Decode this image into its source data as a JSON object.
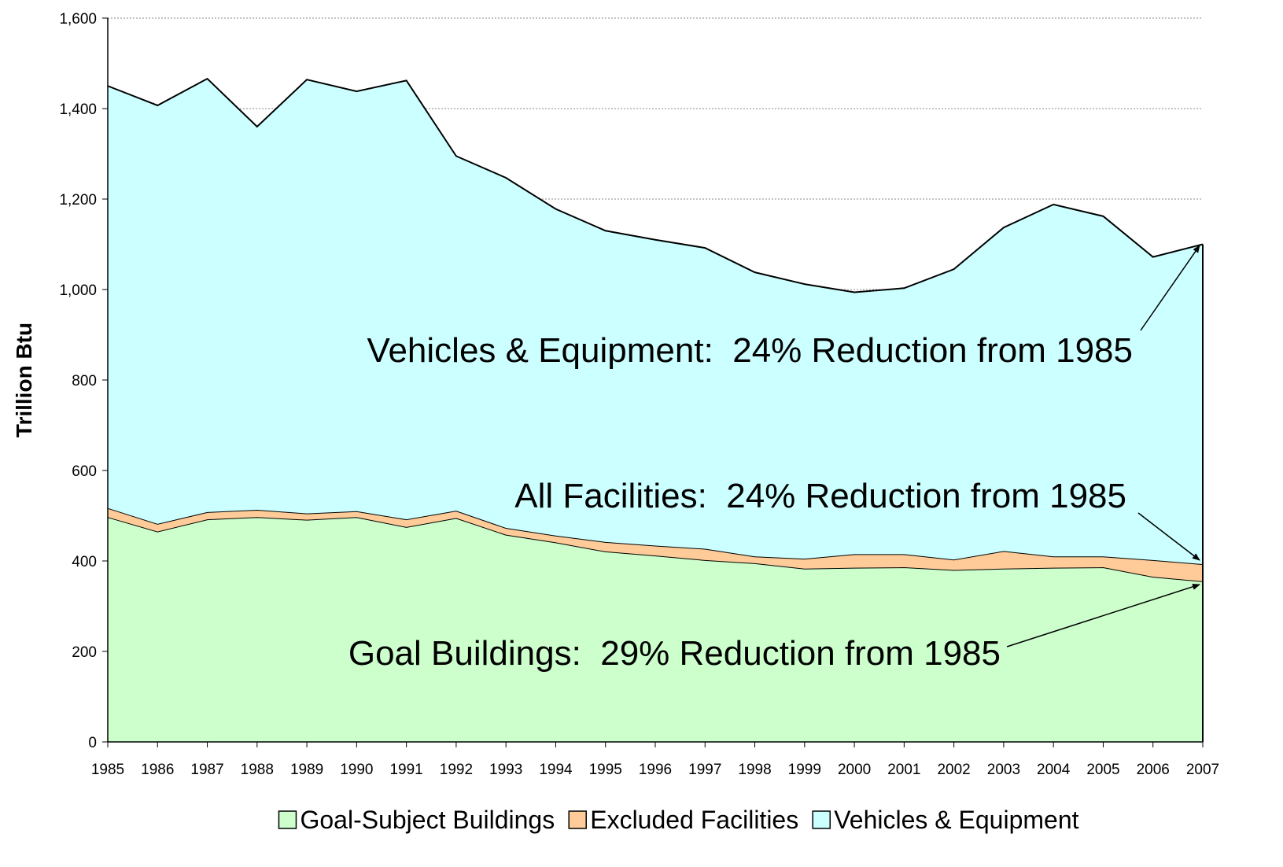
{
  "chart_data": {
    "type": "stacked_area",
    "y_label": "Trillion Btu",
    "categories": [
      "1985",
      "1986",
      "1987",
      "1988",
      "1989",
      "1990",
      "1991",
      "1992",
      "1993",
      "1994",
      "1995",
      "1996",
      "1997",
      "1998",
      "1999",
      "2000",
      "2001",
      "2002",
      "2003",
      "2004",
      "2005",
      "2006",
      "2007"
    ],
    "series": [
      {
        "name": "Goal-Subject Buildings",
        "color": "#ccffcc",
        "values": [
          497,
          465,
          492,
          497,
          491,
          497,
          475,
          495,
          458,
          441,
          421,
          412,
          402,
          395,
          383,
          385,
          386,
          380,
          383,
          385,
          386,
          365,
          355
        ]
      },
      {
        "name": "Excluded Facilities",
        "color": "#ffcc99",
        "values": [
          20,
          17,
          16,
          16,
          14,
          13,
          17,
          16,
          15,
          15,
          21,
          22,
          25,
          15,
          22,
          30,
          29,
          23,
          39,
          25,
          24,
          37,
          38
        ]
      },
      {
        "name": "Vehicles & Equipment",
        "color": "#ccffff",
        "values": [
          933,
          925,
          958,
          847,
          959,
          928,
          970,
          784,
          774,
          722,
          688,
          676,
          665,
          628,
          607,
          579,
          588,
          642,
          715,
          778,
          752,
          670,
          707
        ]
      }
    ],
    "ylim": [
      0,
      1600
    ],
    "yticks": [
      0,
      200,
      400,
      600,
      800,
      {
        "value": 1000,
        "label": "1,000"
      },
      {
        "value": 1200,
        "label": "1,200"
      },
      {
        "value": 1400,
        "label": "1,400"
      },
      {
        "value": 1600,
        "label": "1,600"
      }
    ],
    "grid": true,
    "legend": "bottom",
    "annotations": [
      "Vehicles & Equipment:  24% Reduction from 1985",
      "All Facilities:  24% Reduction from 1985",
      "Goal Buildings:  29% Reduction from 1985"
    ]
  }
}
